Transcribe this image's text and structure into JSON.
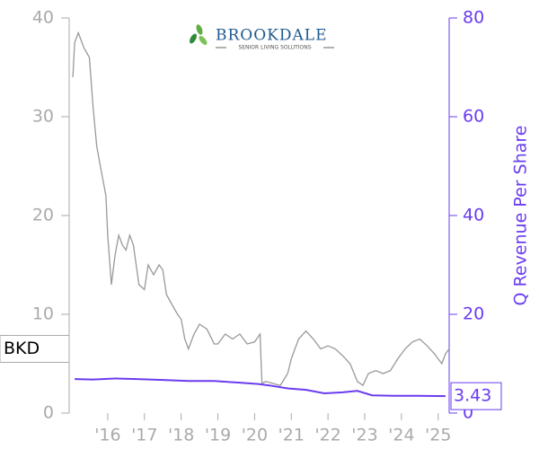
{
  "chart_data": {
    "type": "line",
    "logo": {
      "name": "BROOKDALE",
      "tagline": "SENIOR LIVING SOLUTIONS"
    },
    "ticker": "BKD",
    "y2_label": "Q Revenue Per Share",
    "xlim": [
      2014.95,
      2025.3
    ],
    "xticks": [
      {
        "value": 2016,
        "label": "'16"
      },
      {
        "value": 2017,
        "label": "'17"
      },
      {
        "value": 2018,
        "label": "'18"
      },
      {
        "value": 2019,
        "label": "'19"
      },
      {
        "value": 2020,
        "label": "'20"
      },
      {
        "value": 2021,
        "label": "'21"
      },
      {
        "value": 2022,
        "label": "'22"
      },
      {
        "value": 2023,
        "label": "'23"
      },
      {
        "value": 2024,
        "label": "'24"
      },
      {
        "value": 2025,
        "label": "'25"
      }
    ],
    "ylim": [
      0,
      40
    ],
    "yticks": [
      0,
      10,
      20,
      30,
      40
    ],
    "y2lim": [
      0,
      80
    ],
    "y2ticks": [
      0,
      20,
      40,
      60,
      80
    ],
    "series": [
      {
        "name": "BKD",
        "color": "#999999",
        "x": [
          2015.05,
          2015.1,
          2015.2,
          2015.35,
          2015.5,
          2015.6,
          2015.7,
          2015.8,
          2015.95,
          2016.0,
          2016.1,
          2016.2,
          2016.3,
          2016.4,
          2016.5,
          2016.6,
          2016.7,
          2016.85,
          2017.0,
          2017.1,
          2017.25,
          2017.4,
          2017.5,
          2017.6,
          2017.75,
          2017.9,
          2018.0,
          2018.1,
          2018.2,
          2018.35,
          2018.5,
          2018.7,
          2018.9,
          2019.0,
          2019.2,
          2019.4,
          2019.6,
          2019.8,
          2020.0,
          2020.15,
          2020.2,
          2020.3,
          2020.5,
          2020.7,
          2020.9,
          2021.0,
          2021.2,
          2021.4,
          2021.6,
          2021.8,
          2022.0,
          2022.2,
          2022.4,
          2022.6,
          2022.8,
          2022.95,
          2023.1,
          2023.3,
          2023.5,
          2023.7,
          2023.9,
          2024.1,
          2024.3,
          2024.5,
          2024.7,
          2024.9,
          2025.0,
          2025.1,
          2025.2,
          2025.3
        ],
        "values": [
          34,
          37.5,
          38.5,
          37,
          36,
          31,
          27,
          25,
          22,
          18,
          13,
          16,
          18,
          17,
          16.5,
          18,
          17,
          13,
          12.5,
          15,
          14,
          15,
          14.5,
          12,
          11,
          10,
          9.5,
          7.5,
          6.5,
          8,
          9,
          8.5,
          7,
          7,
          8,
          7.5,
          8,
          7,
          7.2,
          8,
          3,
          3.2,
          3,
          2.8,
          4,
          5.5,
          7.5,
          8.3,
          7.5,
          6.5,
          6.8,
          6.5,
          5.8,
          5,
          3.2,
          2.8,
          4,
          4.3,
          4,
          4.3,
          5.5,
          6.5,
          7.2,
          7.5,
          6.8,
          6,
          5.5,
          5,
          6,
          6.5
        ]
      },
      {
        "name": "Q Revenue Per Share",
        "color": "#6a3cf0",
        "axis": "y2",
        "x": [
          2015.1,
          2015.6,
          2016.2,
          2016.8,
          2017.5,
          2018.2,
          2018.9,
          2019.5,
          2020.1,
          2020.4,
          2020.9,
          2021.4,
          2021.9,
          2022.4,
          2022.8,
          2023.2,
          2023.8,
          2024.4,
          2025.2
        ],
        "values": [
          6.9,
          6.8,
          7.0,
          6.9,
          6.7,
          6.5,
          6.5,
          6.2,
          5.9,
          5.6,
          5.0,
          4.7,
          4.0,
          4.2,
          4.5,
          3.6,
          3.5,
          3.5,
          3.43
        ]
      }
    ]
  }
}
